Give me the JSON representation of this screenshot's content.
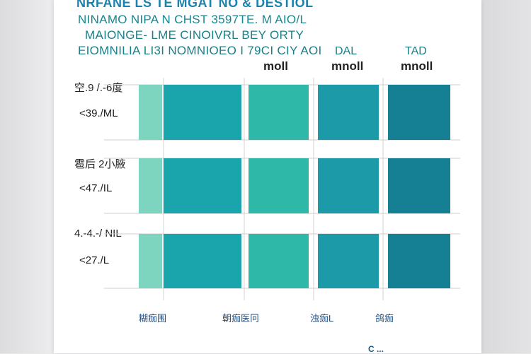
{
  "header": {
    "title": "NRFANE LS TE MGAT NO & DESTIOL",
    "subtitle_1": "NINAMO NIPA N CHST 3597TE. M AIO/L",
    "subtitle_2": "MAIONGE- LME CINOIVRL BEY ORTY",
    "subtitle_3": "EIOMNILIA LI3I NOMNIOEO I 79CI CIY AOI"
  },
  "columns": [
    {
      "header": "",
      "unit": "moll"
    },
    {
      "header": "DAL",
      "unit": "mnoll"
    },
    {
      "header": "TAD",
      "unit": "mnoll"
    }
  ],
  "rows": [
    {
      "label_1": "空.9 /.-6度",
      "label_2": "<39./ML"
    },
    {
      "label_1": "雹后 2小腋",
      "label_2": "<47./IL"
    },
    {
      "label_1": "4.-4.-/ NIL",
      "label_2": "<27./L"
    }
  ],
  "x_labels": [
    "糊痂围",
    "朝痂医冋",
    "浊痂L",
    "鸽痂"
  ],
  "footer_text": "C ...",
  "colors": {
    "mint": "#7dd4bf",
    "teal_a": "#1aa5ad",
    "teal_b": "#2db8a8",
    "teal_c": "#1d9aa8",
    "teal_d": "#157f93",
    "title_blue": "#1c82ad"
  },
  "chart_data": {
    "type": "heatmap",
    "rows": 3,
    "cols": 5,
    "cells": [
      [
        "mint",
        "teal_a",
        "teal_b",
        "teal_c",
        "teal_d"
      ],
      [
        "mint",
        "teal_a",
        "teal_b",
        "teal_c",
        "teal_d"
      ],
      [
        "mint",
        "teal_a",
        "teal_b",
        "teal_c",
        "teal_d"
      ]
    ],
    "grid": true
  }
}
